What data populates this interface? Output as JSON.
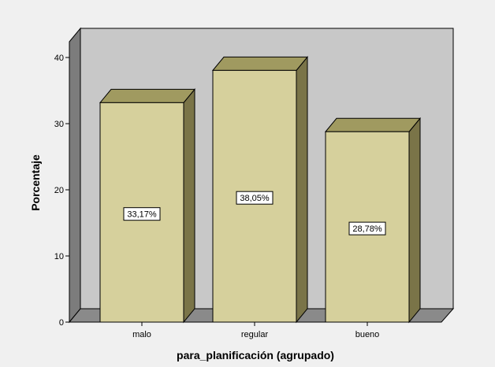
{
  "chart_data": {
    "type": "bar",
    "categories": [
      "malo",
      "regular",
      "bueno"
    ],
    "values": [
      33.17,
      38.05,
      28.78
    ],
    "data_labels": [
      "33,17%",
      "38,05%",
      "28,78%"
    ],
    "title": "",
    "xlabel": "para_planificación (agrupado)",
    "ylabel": "Porcentaje",
    "ylim": [
      0,
      43
    ],
    "yticks": [
      0,
      10,
      20,
      30,
      40
    ],
    "ytick_labels": [
      "0",
      "10",
      "20",
      "30",
      "40"
    ],
    "grid": false,
    "legend": "none",
    "three_d": true
  },
  "colors": {
    "background": "#f0f0f0",
    "plot_back": "#c8c8c8",
    "plot_left_wall": "#7c7c7c",
    "plot_floor": "#8a8a8a",
    "bar_front": "#d6d09c",
    "bar_top": "#a09a60",
    "bar_side": "#7a7448",
    "outline": "#000000"
  }
}
